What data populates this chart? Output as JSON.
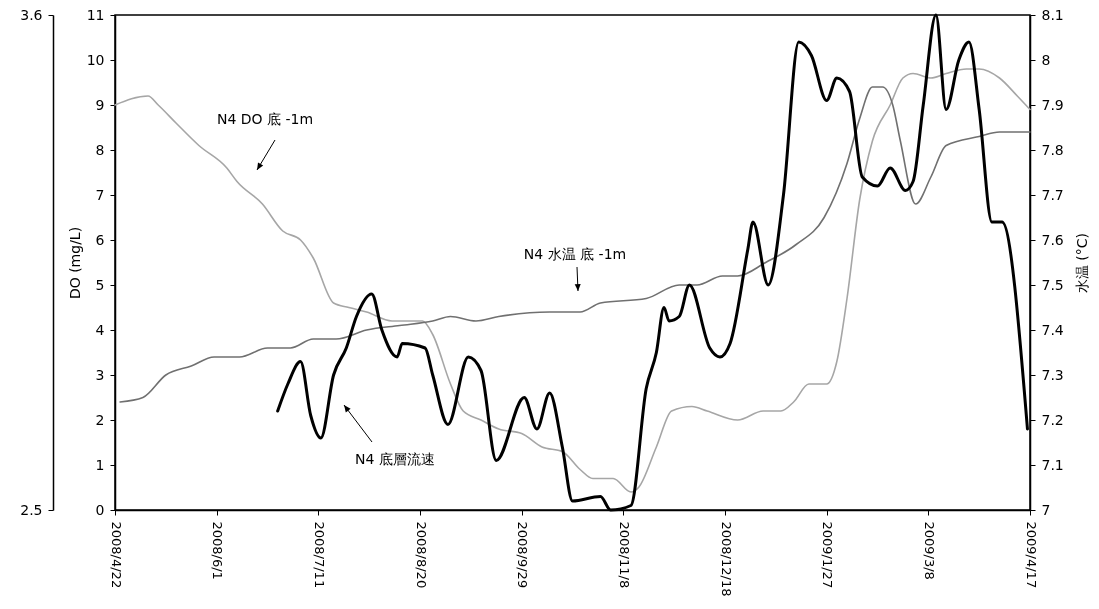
{
  "chart_data": {
    "type": "line",
    "ylabel": "DO (mg/L)",
    "y2label": "水温 (°C)",
    "xlim": [
      "2008-04-22",
      "2009-04-17"
    ],
    "xticks": [
      {
        "value": "2008-04-22",
        "label": "2008/4/22"
      },
      {
        "value": "2008-06-01",
        "label": "2008/6/1"
      },
      {
        "value": "2008-07-11",
        "label": "2008/7/11"
      },
      {
        "value": "2008-08-20",
        "label": "2008/8/20"
      },
      {
        "value": "2008-09-29",
        "label": "2008/9/29"
      },
      {
        "value": "2008-11-08",
        "label": "2008/11/8"
      },
      {
        "value": "2008-12-18",
        "label": "2008/12/18"
      },
      {
        "value": "2009-01-27",
        "label": "2009/1/27"
      },
      {
        "value": "2009-03-08",
        "label": "2009/3/8"
      },
      {
        "value": "2009-04-17",
        "label": "2009/4/17"
      }
    ],
    "ylim": [
      0,
      11
    ],
    "yticks": [
      0,
      1,
      2,
      3,
      4,
      5,
      6,
      7,
      8,
      9,
      10,
      11
    ],
    "y2lim": [
      7,
      8.1
    ],
    "y2ticks": [
      7,
      7.1,
      7.2,
      7.3,
      7.4,
      7.5,
      7.6,
      7.7,
      7.8,
      7.9,
      8,
      8.1
    ],
    "y3lim": [
      2.5,
      3.6
    ],
    "y3ticks": [
      2.5,
      3.6
    ],
    "series": [
      {
        "name": "N4 DO 底 -1m",
        "color": "#a6a6a6",
        "x": [
          "2008-04-22",
          "2008-05-05",
          "2008-05-09",
          "2008-05-16",
          "2008-05-25",
          "2008-06-05",
          "2008-06-09",
          "2008-06-19",
          "2008-06-27",
          "2008-07-04",
          "2008-07-09",
          "2008-07-17",
          "2008-07-23",
          "2008-07-30",
          "2008-08-09",
          "2008-08-21",
          "2008-08-25",
          "2008-09-01",
          "2008-09-06",
          "2008-09-13",
          "2008-09-20",
          "2008-09-29",
          "2008-10-07",
          "2008-10-15",
          "2008-10-22",
          "2008-10-27",
          "2008-11-04",
          "2008-11-11",
          "2008-11-14",
          "2008-11-21",
          "2008-11-27",
          "2008-12-05",
          "2008-12-11",
          "2008-12-23",
          "2009-01-02",
          "2009-01-09",
          "2009-01-14",
          "2009-01-20",
          "2009-01-27",
          "2009-01-31",
          "2009-02-04",
          "2009-02-09",
          "2009-02-14",
          "2009-02-21",
          "2009-02-26",
          "2009-03-02",
          "2009-03-09",
          "2009-03-15",
          "2009-03-23",
          "2009-03-28",
          "2009-04-05",
          "2009-04-12",
          "2009-04-17"
        ],
        "values": [
          9.0,
          9.2,
          9.0,
          8.6,
          8.1,
          7.6,
          7.3,
          6.8,
          6.2,
          6.0,
          5.6,
          4.6,
          4.5,
          4.4,
          4.2,
          4.2,
          3.9,
          2.8,
          2.2,
          2.0,
          1.8,
          1.7,
          1.4,
          1.3,
          0.9,
          0.7,
          0.7,
          0.4,
          0.5,
          1.4,
          2.2,
          2.3,
          2.2,
          2.0,
          2.2,
          2.2,
          2.4,
          2.8,
          2.8,
          3.3,
          4.7,
          6.9,
          8.2,
          9.0,
          9.6,
          9.7,
          9.6,
          9.7,
          9.8,
          9.8,
          9.6,
          9.2,
          8.9
        ]
      },
      {
        "name": "N4 水温 底 -1m",
        "color": "#707070",
        "axis": "y2",
        "x": [
          "2008-04-24",
          "2008-05-03",
          "2008-05-12",
          "2008-05-22",
          "2008-05-31",
          "2008-06-05",
          "2008-06-10",
          "2008-06-21",
          "2008-06-30",
          "2008-07-09",
          "2008-07-18",
          "2008-07-30",
          "2008-08-12",
          "2008-08-25",
          "2008-09-01",
          "2008-09-11",
          "2008-09-20",
          "2008-10-10",
          "2008-10-22",
          "2008-10-30",
          "2008-11-17",
          "2008-11-30",
          "2008-12-07",
          "2008-12-17",
          "2008-12-23",
          "2009-01-03",
          "2009-01-15",
          "2009-01-26",
          "2009-02-04",
          "2009-02-09",
          "2009-02-14",
          "2009-02-18",
          "2009-02-22",
          "2009-02-25",
          "2009-03-03",
          "2009-03-09",
          "2009-03-15",
          "2009-03-28",
          "2009-04-05",
          "2009-04-17"
        ],
        "values": [
          7.24,
          7.25,
          7.3,
          7.32,
          7.34,
          7.34,
          7.34,
          7.36,
          7.36,
          7.38,
          7.38,
          7.4,
          7.41,
          7.42,
          7.43,
          7.42,
          7.43,
          7.44,
          7.44,
          7.46,
          7.47,
          7.5,
          7.5,
          7.52,
          7.52,
          7.55,
          7.59,
          7.65,
          7.77,
          7.87,
          7.94,
          7.94,
          7.9,
          7.82,
          7.68,
          7.74,
          7.81,
          7.83,
          7.84,
          7.84
        ]
      },
      {
        "name": "N4 底層流速",
        "color": "#000000",
        "axis": "y3",
        "x": [
          "2008-06-25",
          "2008-06-29",
          "2008-07-04",
          "2008-07-08",
          "2008-07-12",
          "2008-07-17",
          "2008-07-22",
          "2008-07-26",
          "2008-08-01",
          "2008-08-05",
          "2008-08-11",
          "2008-08-13",
          "2008-08-22",
          "2008-08-25",
          "2008-08-31",
          "2008-09-08",
          "2008-09-13",
          "2008-09-19",
          "2008-09-30",
          "2008-10-05",
          "2008-10-10",
          "2008-10-15",
          "2008-10-19",
          "2008-10-30",
          "2008-11-03",
          "2008-11-11",
          "2008-11-17",
          "2008-11-21",
          "2008-11-24",
          "2008-11-26",
          "2008-11-30",
          "2008-12-04",
          "2008-12-12",
          "2008-12-16",
          "2008-12-20",
          "2008-12-27",
          "2008-12-29",
          "2009-01-04",
          "2009-01-10",
          "2009-01-16",
          "2009-01-21",
          "2009-01-27",
          "2009-01-31",
          "2009-02-05",
          "2009-02-10",
          "2009-02-16",
          "2009-02-21",
          "2009-02-27",
          "2009-03-02",
          "2009-03-06",
          "2009-03-11",
          "2009-03-15",
          "2009-03-20",
          "2009-03-24",
          "2009-03-28",
          "2009-04-02",
          "2009-04-06",
          "2009-04-16"
        ],
        "values": [
          2.72,
          2.78,
          2.83,
          2.71,
          2.66,
          2.8,
          2.86,
          2.93,
          2.98,
          2.9,
          2.84,
          2.87,
          2.86,
          2.8,
          2.69,
          2.84,
          2.81,
          2.61,
          2.75,
          2.68,
          2.76,
          2.64,
          2.52,
          2.53,
          2.5,
          2.51,
          2.77,
          2.85,
          2.95,
          2.92,
          2.93,
          3.0,
          2.86,
          2.84,
          2.87,
          3.08,
          3.14,
          3.0,
          3.2,
          3.54,
          3.51,
          3.41,
          3.46,
          3.43,
          3.24,
          3.22,
          3.26,
          3.21,
          3.23,
          3.4,
          3.6,
          3.39,
          3.5,
          3.54,
          3.39,
          3.14,
          3.14,
          2.68
        ]
      }
    ]
  }
}
